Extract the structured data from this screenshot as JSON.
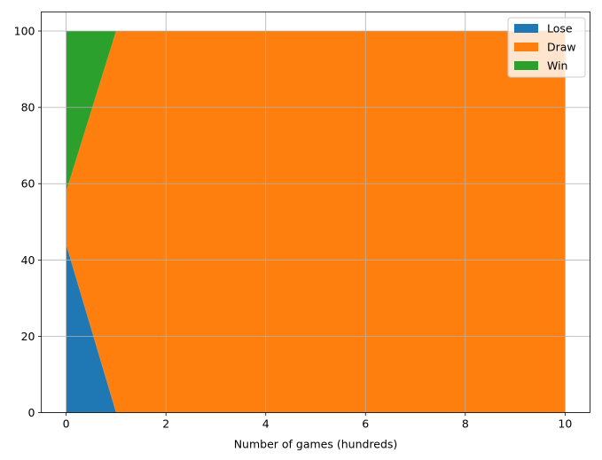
{
  "chart_data": {
    "type": "area",
    "stacked": true,
    "title": "",
    "xlabel": "Number of games (hundreds)",
    "ylabel": "",
    "x": [
      0,
      1,
      2,
      3,
      4,
      5,
      6,
      7,
      8,
      9,
      10
    ],
    "series": [
      {
        "name": "Lose",
        "color": "#1f77b4",
        "values": [
          44,
          0,
          0,
          0,
          0,
          0,
          0,
          0,
          0,
          0,
          0
        ]
      },
      {
        "name": "Draw",
        "color": "#ff7f0e",
        "values": [
          14,
          100,
          100,
          100,
          100,
          100,
          100,
          100,
          100,
          100,
          100
        ]
      },
      {
        "name": "Win",
        "color": "#2ca02c",
        "values": [
          42,
          0,
          0,
          0,
          0,
          0,
          0,
          0,
          0,
          0,
          0
        ]
      }
    ],
    "xlim": [
      -0.5,
      10.5
    ],
    "ylim": [
      0,
      105
    ],
    "xticks": [
      0,
      2,
      4,
      6,
      8,
      10
    ],
    "yticks": [
      0,
      20,
      40,
      60,
      80,
      100
    ],
    "grid": true,
    "legend_position": "top-right"
  }
}
